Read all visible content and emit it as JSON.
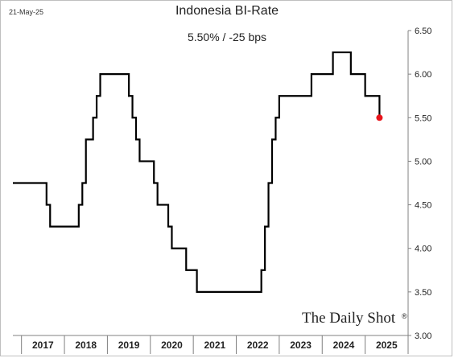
{
  "header": {
    "date": "21-May-25",
    "title": "Indonesia BI-Rate",
    "subtitle": "5.50%  /  -25 bps"
  },
  "brand": {
    "name": "The Daily Shot",
    "mark": "®"
  },
  "colors": {
    "line": "#000000",
    "marker": "#e8141b",
    "axis": "#808080"
  },
  "chart_data": {
    "type": "line",
    "title": "Indonesia BI-Rate",
    "subtitle": "5.50%  /  -25 bps",
    "xlabel": "",
    "ylabel": "",
    "ylim": [
      3.0,
      6.5
    ],
    "yticks": [
      "6.50",
      "6.00",
      "5.50",
      "5.00",
      "4.50",
      "4.00",
      "3.50",
      "3.00"
    ],
    "yaxis_side": "right",
    "grid": false,
    "xcategories": [
      "2017",
      "2018",
      "2019",
      "2020",
      "2021",
      "2022",
      "2023",
      "2024",
      "2025"
    ],
    "series": [
      {
        "step": true,
        "points": [
          [
            "2016-10",
            4.75
          ],
          [
            "2017-01",
            4.75
          ],
          [
            "2017-02",
            4.75
          ],
          [
            "2017-08",
            4.5
          ],
          [
            "2017-09",
            4.25
          ],
          [
            "2018-04",
            4.25
          ],
          [
            "2018-05",
            4.5
          ],
          [
            "2018-06",
            4.75
          ],
          [
            "2018-07",
            5.25
          ],
          [
            "2018-09",
            5.5
          ],
          [
            "2018-10",
            5.75
          ],
          [
            "2018-11",
            6.0
          ],
          [
            "2019-06",
            6.0
          ],
          [
            "2019-07",
            5.75
          ],
          [
            "2019-08",
            5.5
          ],
          [
            "2019-09",
            5.25
          ],
          [
            "2019-10",
            5.0
          ],
          [
            "2020-02",
            4.75
          ],
          [
            "2020-03",
            4.5
          ],
          [
            "2020-06",
            4.25
          ],
          [
            "2020-07",
            4.0
          ],
          [
            "2020-11",
            3.75
          ],
          [
            "2021-02",
            3.5
          ],
          [
            "2022-07",
            3.5
          ],
          [
            "2022-08",
            3.75
          ],
          [
            "2022-09",
            4.25
          ],
          [
            "2022-10",
            4.75
          ],
          [
            "2022-11",
            5.25
          ],
          [
            "2022-12",
            5.5
          ],
          [
            "2023-01",
            5.75
          ],
          [
            "2023-10",
            6.0
          ],
          [
            "2024-04",
            6.25
          ],
          [
            "2024-09",
            6.0
          ],
          [
            "2024-12",
            6.0
          ],
          [
            "2025-01",
            5.75
          ],
          [
            "2025-05",
            5.5
          ]
        ]
      }
    ],
    "last_point": {
      "date": "2025-05",
      "value": 5.5
    }
  }
}
